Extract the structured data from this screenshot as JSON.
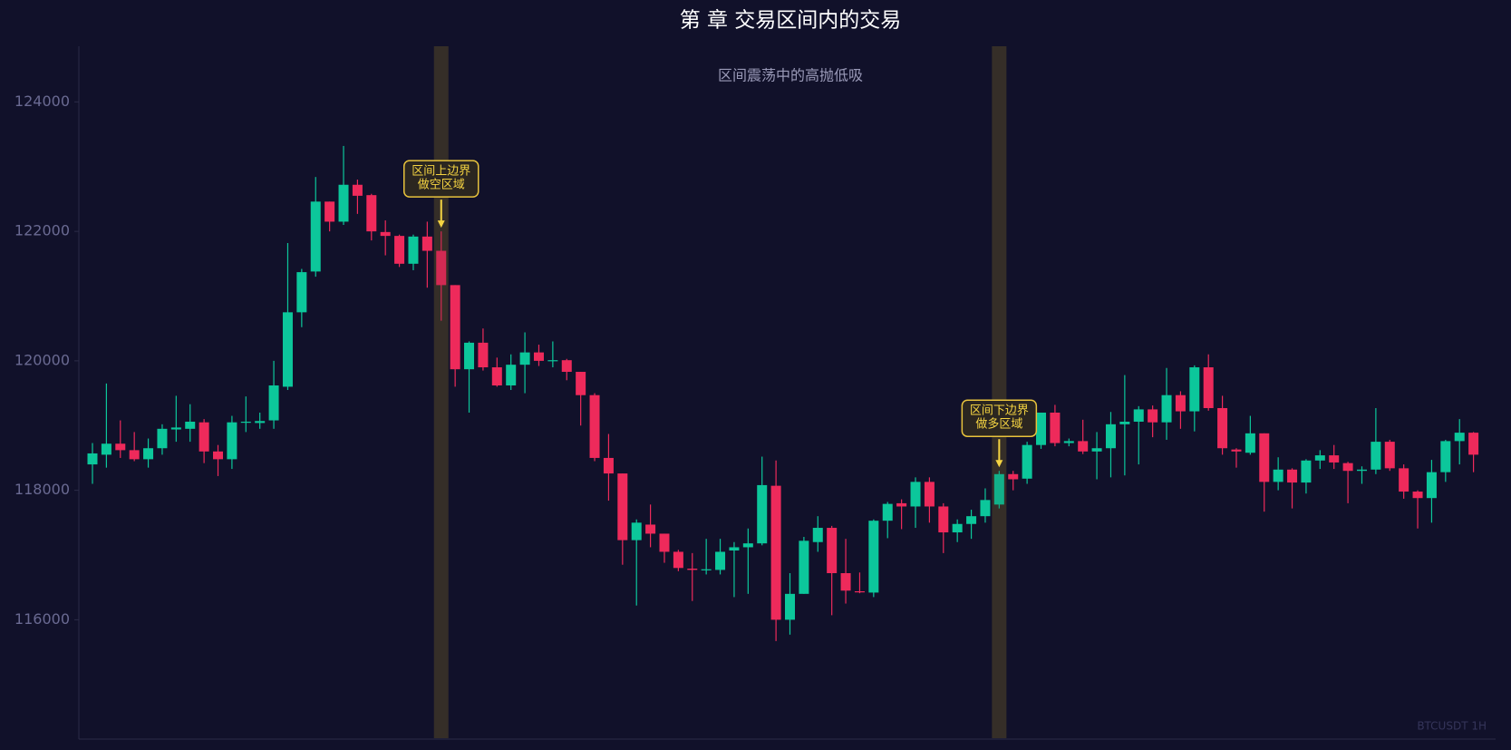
{
  "chart_data": {
    "type": "candlestick",
    "title": "第 章 交易区间内的交易",
    "subtitle": "区间震荡中的高抛低吸",
    "watermark": "BTCUSDT 1H",
    "up_color": "#0cc79b",
    "down_color": "#ee2a5b",
    "highlight_color": "#3a3228",
    "ylim": [
      114170,
      124860
    ],
    "yticks": [
      116000,
      118000,
      120000,
      122000,
      124000
    ],
    "grid": false,
    "open": [
      118400,
      118550,
      118720,
      118620,
      118480,
      118650,
      118940,
      118950,
      119050,
      118600,
      118480,
      119050,
      119040,
      119080,
      119600,
      120750,
      121380,
      122460,
      122150,
      122720,
      122560,
      121990,
      121930,
      121500,
      121920,
      121700,
      121170,
      119870,
      120280,
      119900,
      119620,
      119940,
      120130,
      120000,
      120010,
      119830,
      119470,
      118500,
      118260,
      117230,
      117470,
      117330,
      117050,
      116790,
      116770,
      116770,
      117070,
      117120,
      117180,
      118070,
      116000,
      116400,
      117200,
      117420,
      116720,
      116440,
      116420,
      117530,
      117800,
      117750,
      118130,
      117750,
      117350,
      117480,
      117600,
      117780,
      118250,
      118180,
      118700,
      119200,
      118730,
      118760,
      118600,
      118650,
      119020,
      119060,
      119250,
      119050,
      119470,
      119220,
      119900,
      119270,
      118630,
      118580,
      118880,
      118130,
      118320,
      118120,
      118460,
      118540,
      118420,
      118300,
      118320,
      118750,
      118340,
      117980,
      117880,
      118280,
      118760,
      118890
    ],
    "high": [
      118730,
      119650,
      119080,
      118900,
      118800,
      119020,
      119460,
      119330,
      119100,
      118700,
      119150,
      119450,
      119200,
      120000,
      121820,
      121420,
      122840,
      122460,
      123320,
      122800,
      122580,
      122170,
      121950,
      121950,
      122150,
      122000,
      121170,
      120300,
      120500,
      120050,
      120100,
      120440,
      120250,
      120300,
      120030,
      119830,
      119500,
      118870,
      118260,
      117550,
      117780,
      117330,
      117080,
      117030,
      117250,
      117250,
      117200,
      117410,
      118520,
      118460,
      116720,
      117280,
      117600,
      117450,
      117250,
      116730,
      117550,
      117820,
      117860,
      118200,
      118200,
      117800,
      117550,
      117700,
      118030,
      118300,
      118300,
      118750,
      119200,
      119320,
      118800,
      119090,
      118900,
      119210,
      119780,
      119300,
      119310,
      119890,
      119530,
      119930,
      120100,
      119460,
      118650,
      119150,
      118880,
      118510,
      118340,
      118480,
      118620,
      118700,
      118440,
      118370,
      119270,
      118780,
      118400,
      118000,
      118470,
      118780,
      119100,
      118900
    ],
    "low": [
      118100,
      118350,
      118500,
      118450,
      118350,
      118550,
      118750,
      118750,
      118420,
      118220,
      118330,
      118900,
      118950,
      118950,
      119550,
      120520,
      121300,
      122000,
      122100,
      122270,
      121860,
      121630,
      121450,
      121400,
      121130,
      120620,
      119600,
      119200,
      119850,
      119600,
      119550,
      119500,
      119920,
      119900,
      119700,
      119000,
      118450,
      117840,
      116850,
      116220,
      117120,
      116880,
      116750,
      116290,
      116700,
      116700,
      116350,
      116400,
      117150,
      115670,
      115770,
      116400,
      117050,
      116070,
      116250,
      116410,
      116350,
      117260,
      117400,
      117420,
      117500,
      117030,
      117200,
      117250,
      117500,
      117720,
      118000,
      118100,
      118640,
      118680,
      118680,
      118560,
      118170,
      118200,
      118230,
      118400,
      118820,
      118780,
      118950,
      118910,
      119230,
      118550,
      118350,
      118550,
      117670,
      118000,
      117720,
      117950,
      118330,
      118330,
      117800,
      118100,
      118250,
      118300,
      117870,
      117410,
      117500,
      118130,
      118400,
      118280
    ],
    "close": [
      118570,
      118720,
      118620,
      118480,
      118650,
      118950,
      118970,
      119060,
      118600,
      118480,
      119050,
      119060,
      119070,
      119620,
      120750,
      121370,
      122460,
      122150,
      122720,
      122550,
      122000,
      121930,
      121500,
      121920,
      121700,
      121170,
      119870,
      120280,
      119900,
      119620,
      119940,
      120130,
      120000,
      120010,
      119830,
      119470,
      118500,
      118260,
      117230,
      117500,
      117330,
      117050,
      116800,
      116770,
      116780,
      117050,
      117120,
      117180,
      118080,
      116000,
      116400,
      117220,
      117420,
      116720,
      116450,
      116430,
      117530,
      117790,
      117750,
      118130,
      117750,
      117350,
      117480,
      117600,
      117850,
      118250,
      118170,
      118700,
      119200,
      118730,
      118760,
      118600,
      118650,
      119020,
      119060,
      119250,
      119050,
      119470,
      119220,
      119900,
      119270,
      118650,
      118600,
      118880,
      118130,
      118320,
      118120,
      118460,
      118540,
      118430,
      118300,
      118320,
      118750,
      118340,
      117980,
      117880,
      118280,
      118760,
      118890,
      118550
    ],
    "highlights": [
      25,
      65
    ],
    "annotations": [
      {
        "index": 25,
        "lines": [
          "区间上边界",
          "做空区域"
        ]
      },
      {
        "index": 65,
        "lines": [
          "区间下边界",
          "做多区域"
        ]
      }
    ]
  }
}
